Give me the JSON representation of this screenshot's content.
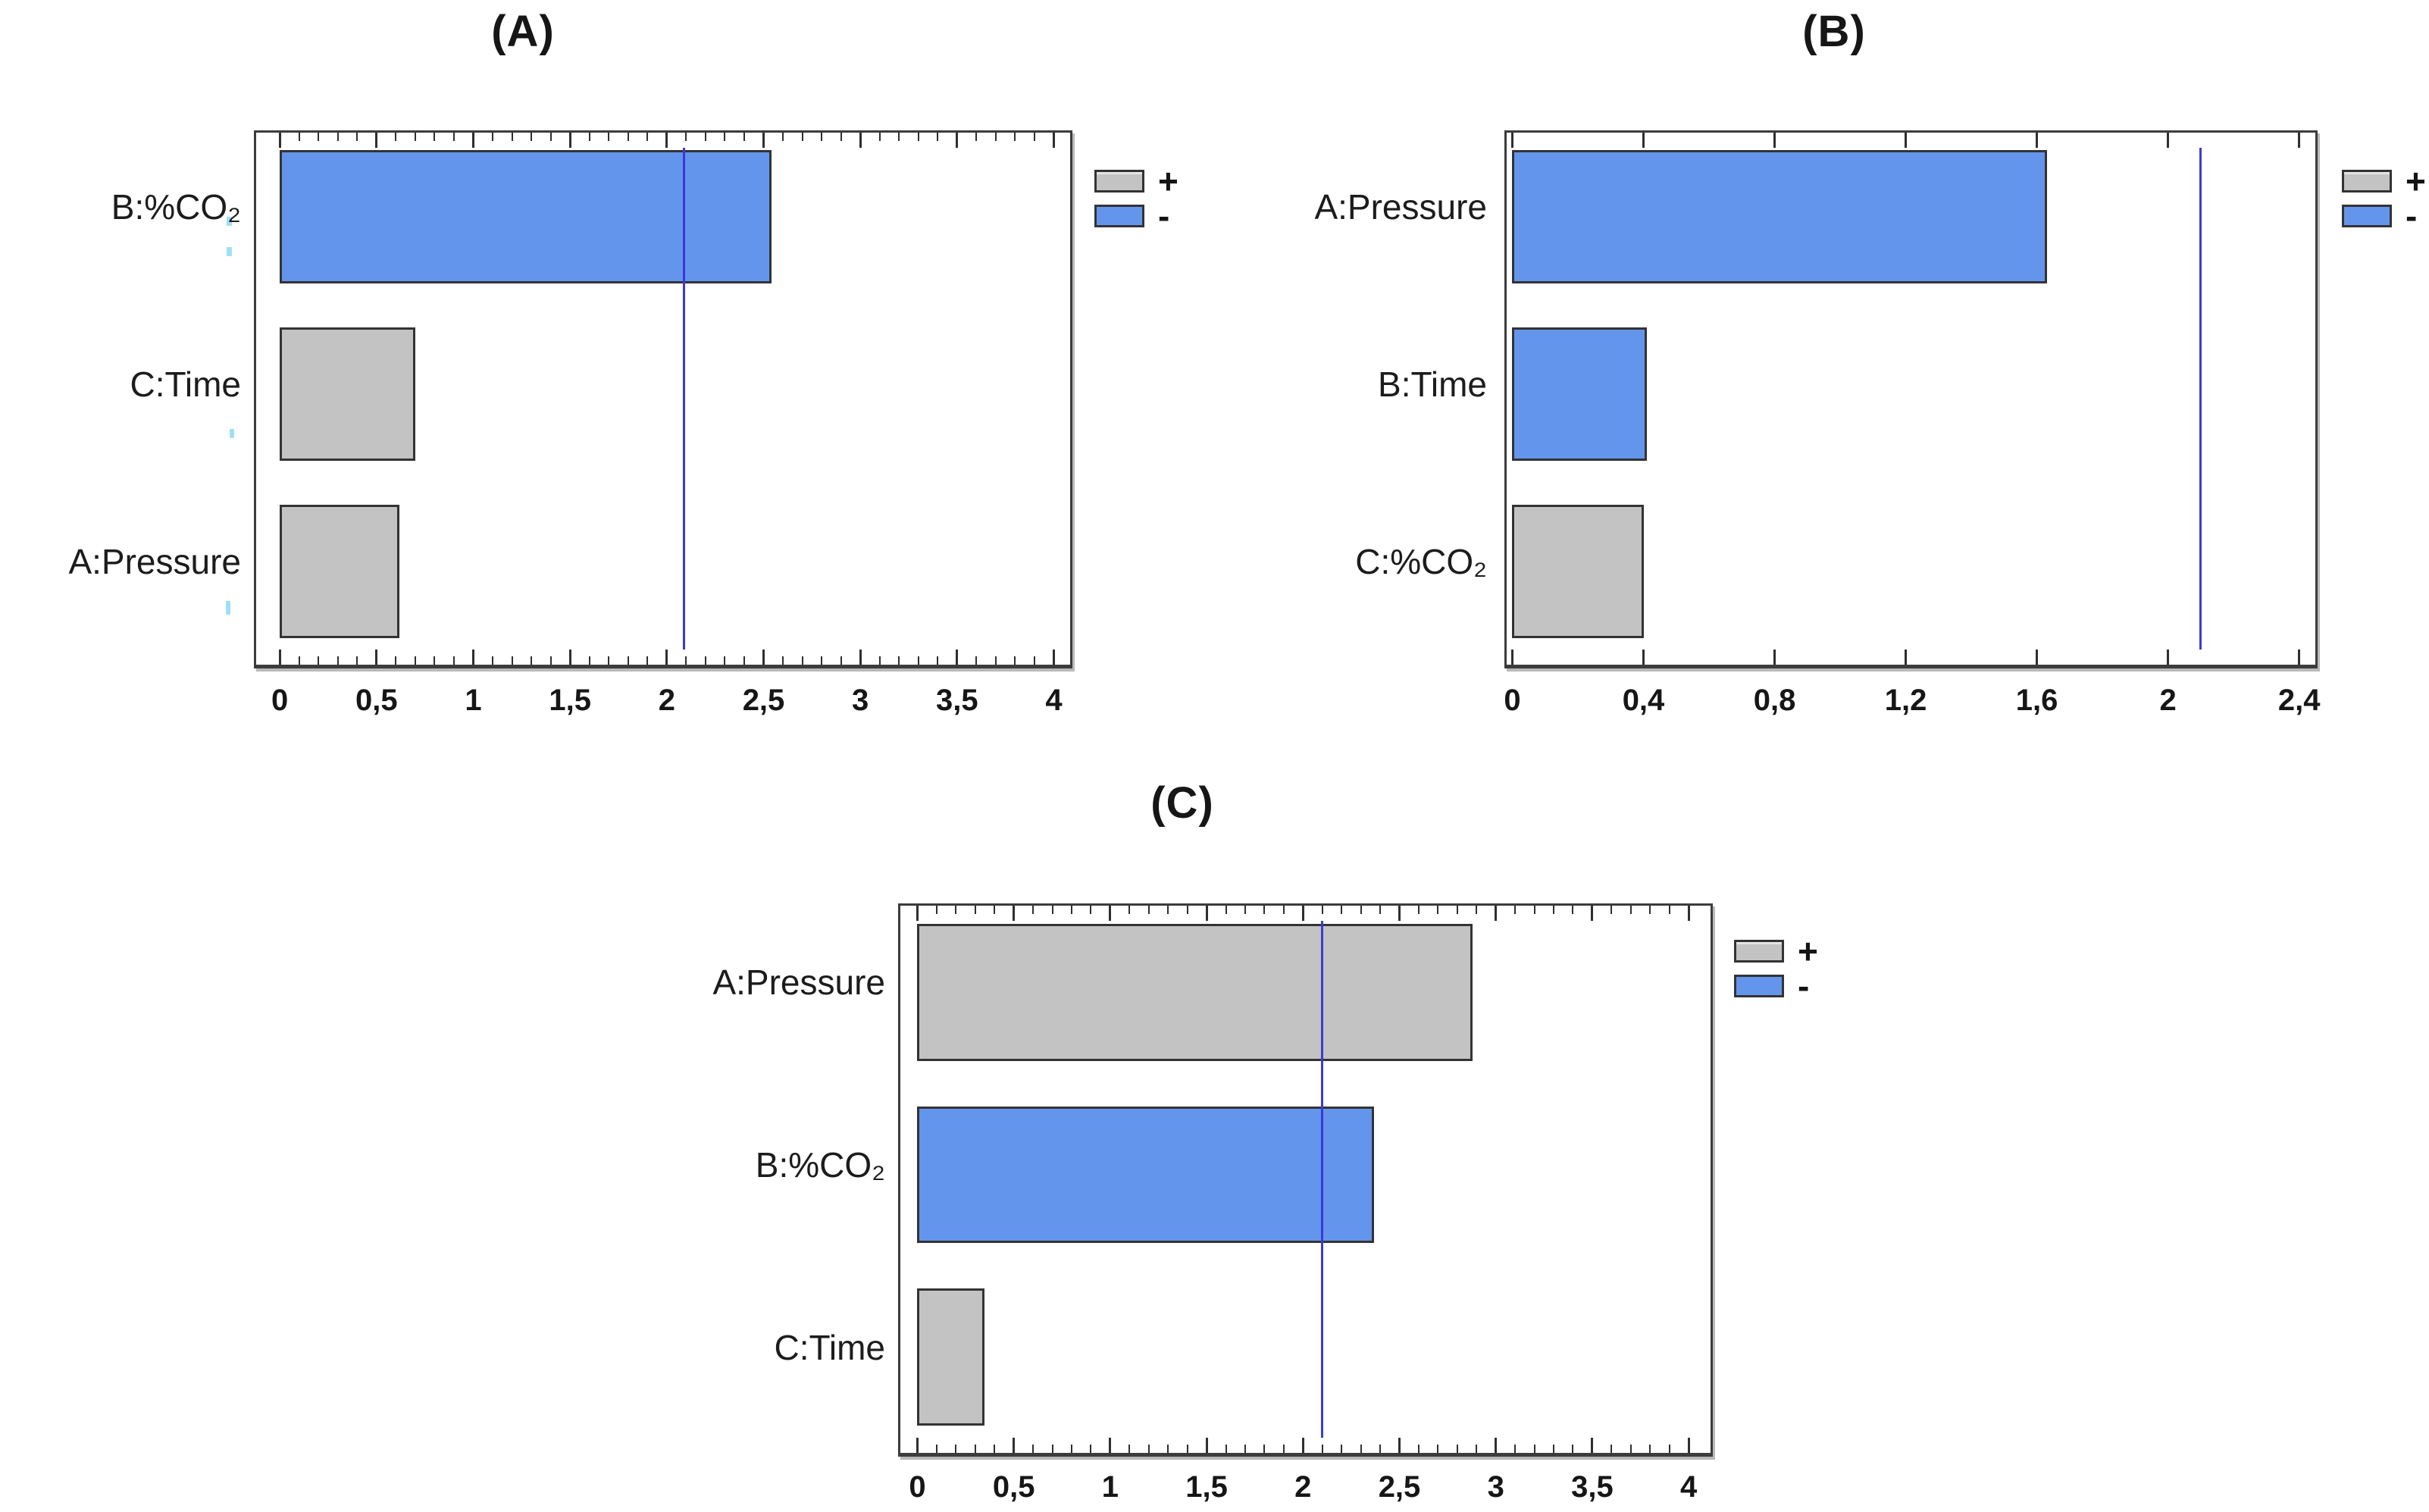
{
  "page": {
    "background": "#ffffff"
  },
  "legend": {
    "positive_label": "+",
    "negative_label": "-"
  },
  "colors": {
    "positive_bar": "#c3c3c3",
    "negative_bar": "#6495ec",
    "reference_line": "#3a3ad6",
    "bar_border": "#333333",
    "frame_border": "#3c3c3c"
  },
  "chart_data": [
    {
      "id": "A",
      "type": "bar",
      "orientation": "horizontal",
      "title": "(A)",
      "categories": [
        "B:%CO₂",
        "C:Time",
        "A:Pressure"
      ],
      "values": [
        2.54,
        0.7,
        0.62
      ],
      "signs": [
        "-",
        "+",
        "+"
      ],
      "xlim": [
        0,
        4
      ],
      "xtick_step": 0.5,
      "xtick_labels": [
        "0",
        "0,5",
        "1",
        "1,5",
        "2",
        "2,5",
        "3",
        "3,5",
        "4"
      ],
      "minor_ticks_between": 4,
      "reference_line": 2.09,
      "legend_entries": [
        "+",
        "-"
      ],
      "grid": false,
      "legend_position": "right-top"
    },
    {
      "id": "B",
      "type": "bar",
      "orientation": "horizontal",
      "title": "(B)",
      "categories": [
        "A:Pressure",
        "B:Time",
        "C:%CO₂"
      ],
      "values": [
        1.63,
        0.41,
        0.4
      ],
      "signs": [
        "-",
        "-",
        "+"
      ],
      "xlim": [
        0,
        2.4
      ],
      "xtick_step": 0.4,
      "xtick_labels": [
        "0",
        "0,4",
        "0,8",
        "1,2",
        "1,6",
        "2",
        "2,4"
      ],
      "minor_ticks_between": 0,
      "reference_line": 2.1,
      "legend_entries": [
        "+",
        "-"
      ],
      "grid": false,
      "legend_position": "right-top"
    },
    {
      "id": "C",
      "type": "bar",
      "orientation": "horizontal",
      "title": "(C)",
      "categories": [
        "A:Pressure",
        "B:%CO₂",
        "C:Time"
      ],
      "values": [
        2.88,
        2.37,
        0.35
      ],
      "signs": [
        "+",
        "-",
        "+"
      ],
      "xlim": [
        0,
        4
      ],
      "xtick_step": 0.5,
      "xtick_labels": [
        "0",
        "0,5",
        "1",
        "1,5",
        "2",
        "2,5",
        "3",
        "3,5",
        "4"
      ],
      "minor_ticks_between": 4,
      "reference_line": 2.1,
      "legend_entries": [
        "+",
        "-"
      ],
      "grid": false,
      "legend_position": "right-top"
    }
  ]
}
